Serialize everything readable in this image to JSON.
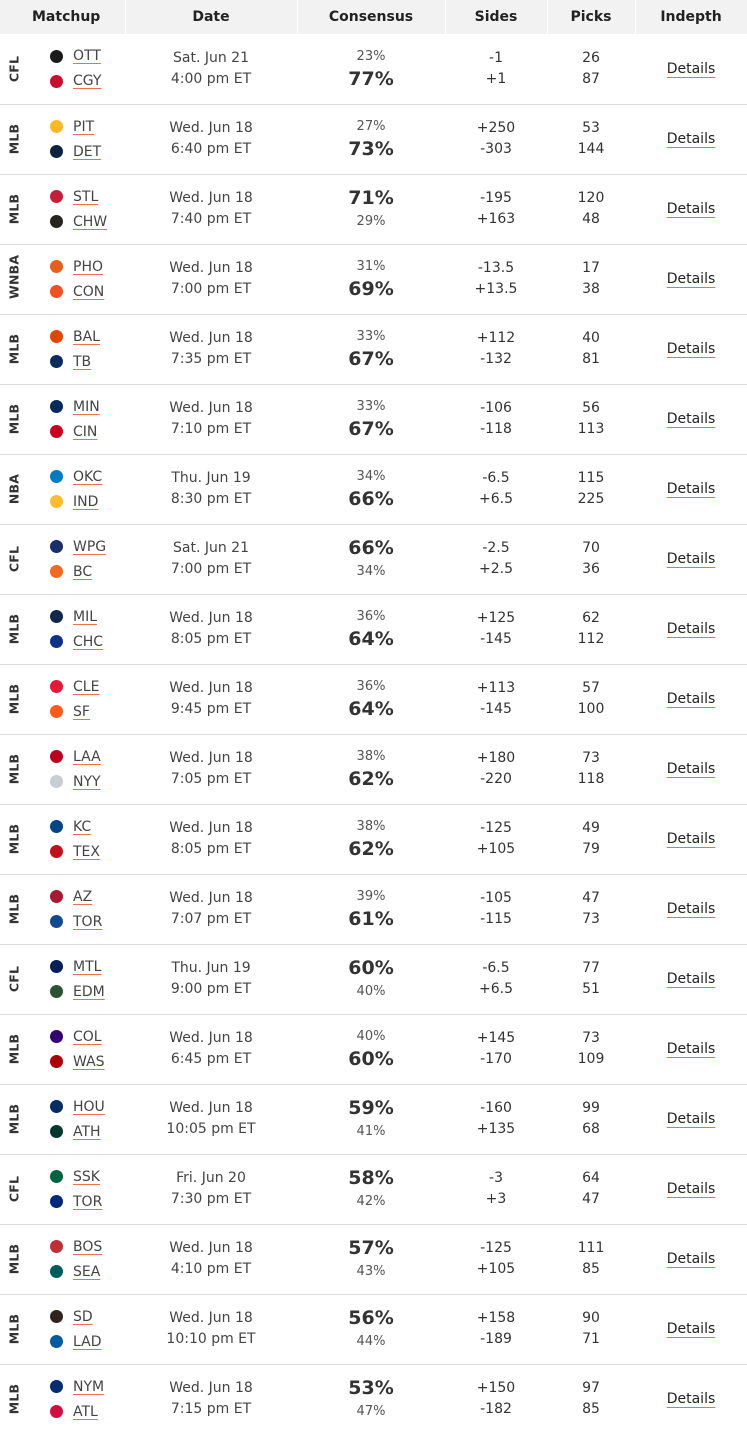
{
  "headers": {
    "matchup": "Matchup",
    "date": "Date",
    "consensus": "Consensus",
    "sides": "Sides",
    "picks": "Picks",
    "indepth": "Indepth"
  },
  "details_label": "Details",
  "rows": [
    {
      "league": "CFL",
      "away": "OTT",
      "home": "CGY",
      "day": "Sat. Jun 21",
      "time": "4:00 pm ET",
      "c_away": "23%",
      "c_home": "77%",
      "s_away": "-1",
      "s_home": "+1",
      "p_away": "26",
      "p_home": "87",
      "la": "#1a1a1a",
      "lh": "#c8102e"
    },
    {
      "league": "MLB",
      "away": "PIT",
      "home": "DET",
      "day": "Wed. Jun 18",
      "time": "6:40 pm ET",
      "c_away": "27%",
      "c_home": "73%",
      "s_away": "+250",
      "s_home": "-303",
      "p_away": "53",
      "p_home": "144",
      "la": "#fdb827",
      "lh": "#0c2340"
    },
    {
      "league": "MLB",
      "away": "STL",
      "home": "CHW",
      "day": "Wed. Jun 18",
      "time": "7:40 pm ET",
      "c_away": "71%",
      "c_home": "29%",
      "s_away": "-195",
      "s_home": "+163",
      "p_away": "120",
      "p_home": "48",
      "la": "#c41e3a",
      "lh": "#27251f"
    },
    {
      "league": "WNBA",
      "away": "PHO",
      "home": "CON",
      "day": "Wed. Jun 18",
      "time": "7:00 pm ET",
      "c_away": "31%",
      "c_home": "69%",
      "s_away": "-13.5",
      "s_home": "+13.5",
      "p_away": "17",
      "p_home": "38",
      "la": "#e56020",
      "lh": "#f05023"
    },
    {
      "league": "MLB",
      "away": "BAL",
      "home": "TB",
      "day": "Wed. Jun 18",
      "time": "7:35 pm ET",
      "c_away": "33%",
      "c_home": "67%",
      "s_away": "+112",
      "s_home": "-132",
      "p_away": "40",
      "p_home": "81",
      "la": "#df4601",
      "lh": "#092c5c"
    },
    {
      "league": "MLB",
      "away": "MIN",
      "home": "CIN",
      "day": "Wed. Jun 18",
      "time": "7:10 pm ET",
      "c_away": "33%",
      "c_home": "67%",
      "s_away": "-106",
      "s_home": "-118",
      "p_away": "56",
      "p_home": "113",
      "la": "#002b5c",
      "lh": "#c6011f"
    },
    {
      "league": "NBA",
      "away": "OKC",
      "home": "IND",
      "day": "Thu. Jun 19",
      "time": "8:30 pm ET",
      "c_away": "34%",
      "c_home": "66%",
      "s_away": "-6.5",
      "s_home": "+6.5",
      "p_away": "115",
      "p_home": "225",
      "la": "#007ac1",
      "lh": "#fdbb30"
    },
    {
      "league": "CFL",
      "away": "WPG",
      "home": "BC",
      "day": "Sat. Jun 21",
      "time": "7:00 pm ET",
      "c_away": "66%",
      "c_home": "34%",
      "s_away": "-2.5",
      "s_home": "+2.5",
      "p_away": "70",
      "p_home": "36",
      "la": "#1b2d6b",
      "lh": "#f26a21"
    },
    {
      "league": "MLB",
      "away": "MIL",
      "home": "CHC",
      "day": "Wed. Jun 18",
      "time": "8:05 pm ET",
      "c_away": "36%",
      "c_home": "64%",
      "s_away": "+125",
      "s_home": "-145",
      "p_away": "62",
      "p_home": "112",
      "la": "#12284b",
      "lh": "#0e3386"
    },
    {
      "league": "MLB",
      "away": "CLE",
      "home": "SF",
      "day": "Wed. Jun 18",
      "time": "9:45 pm ET",
      "c_away": "36%",
      "c_home": "64%",
      "s_away": "+113",
      "s_home": "-145",
      "p_away": "57",
      "p_home": "100",
      "la": "#e31937",
      "lh": "#fd5a1e"
    },
    {
      "league": "MLB",
      "away": "LAA",
      "home": "NYY",
      "day": "Wed. Jun 18",
      "time": "7:05 pm ET",
      "c_away": "38%",
      "c_home": "62%",
      "s_away": "+180",
      "s_home": "-220",
      "p_away": "73",
      "p_home": "118",
      "la": "#ba0021",
      "lh": "#c4ced3"
    },
    {
      "league": "MLB",
      "away": "KC",
      "home": "TEX",
      "day": "Wed. Jun 18",
      "time": "8:05 pm ET",
      "c_away": "38%",
      "c_home": "62%",
      "s_away": "-125",
      "s_home": "+105",
      "p_away": "49",
      "p_home": "79",
      "la": "#004687",
      "lh": "#c0111f"
    },
    {
      "league": "MLB",
      "away": "AZ",
      "home": "TOR",
      "day": "Wed. Jun 18",
      "time": "7:07 pm ET",
      "c_away": "39%",
      "c_home": "61%",
      "s_away": "-105",
      "s_home": "-115",
      "p_away": "47",
      "p_home": "73",
      "la": "#a71930",
      "lh": "#134a8e"
    },
    {
      "league": "CFL",
      "away": "MTL",
      "home": "EDM",
      "day": "Thu. Jun 19",
      "time": "9:00 pm ET",
      "c_away": "60%",
      "c_home": "40%",
      "s_away": "-6.5",
      "s_home": "+6.5",
      "p_away": "77",
      "p_home": "51",
      "la": "#00205b",
      "lh": "#2c5234"
    },
    {
      "league": "MLB",
      "away": "COL",
      "home": "WAS",
      "day": "Wed. Jun 18",
      "time": "6:45 pm ET",
      "c_away": "40%",
      "c_home": "60%",
      "s_away": "+145",
      "s_home": "-170",
      "p_away": "73",
      "p_home": "109",
      "la": "#33006f",
      "lh": "#ab0003"
    },
    {
      "league": "MLB",
      "away": "HOU",
      "home": "ATH",
      "day": "Wed. Jun 18",
      "time": "10:05 pm ET",
      "c_away": "59%",
      "c_home": "41%",
      "s_away": "-160",
      "s_home": "+135",
      "p_away": "99",
      "p_home": "68",
      "la": "#002d62",
      "lh": "#003831"
    },
    {
      "league": "CFL",
      "away": "SSK",
      "home": "TOR",
      "day": "Fri. Jun 20",
      "time": "7:30 pm ET",
      "c_away": "58%",
      "c_home": "42%",
      "s_away": "-3",
      "s_home": "+3",
      "p_away": "64",
      "p_home": "47",
      "la": "#006341",
      "lh": "#00297a"
    },
    {
      "league": "MLB",
      "away": "BOS",
      "home": "SEA",
      "day": "Wed. Jun 18",
      "time": "4:10 pm ET",
      "c_away": "57%",
      "c_home": "43%",
      "s_away": "-125",
      "s_home": "+105",
      "p_away": "111",
      "p_home": "85",
      "la": "#bd3039",
      "lh": "#005c5c"
    },
    {
      "league": "MLB",
      "away": "SD",
      "home": "LAD",
      "day": "Wed. Jun 18",
      "time": "10:10 pm ET",
      "c_away": "56%",
      "c_home": "44%",
      "s_away": "+158",
      "s_home": "-189",
      "p_away": "90",
      "p_home": "71",
      "la": "#2f241d",
      "lh": "#005a9c"
    },
    {
      "league": "MLB",
      "away": "NYM",
      "home": "ATL",
      "day": "Wed. Jun 18",
      "time": "7:15 pm ET",
      "c_away": "53%",
      "c_home": "47%",
      "s_away": "+150",
      "s_home": "-182",
      "p_away": "97",
      "p_home": "85",
      "la": "#002d72",
      "lh": "#ce1141"
    }
  ]
}
